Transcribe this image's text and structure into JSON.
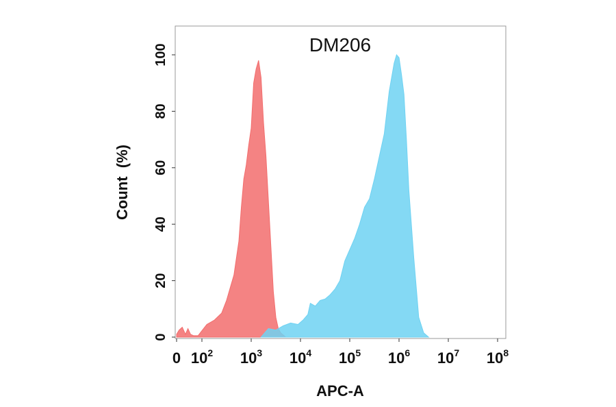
{
  "chart_data": {
    "type": "area",
    "title": "DM206",
    "xlabel": "APC-A",
    "ylabel": "Count  (%)",
    "x_scale": "biexponential (0, then log10)",
    "xlim": [
      0,
      100000000
    ],
    "ylim": [
      0,
      110
    ],
    "yticks": [
      0,
      20,
      40,
      60,
      80,
      100
    ],
    "ytick_labels": [
      "0",
      "20",
      "40",
      "60",
      "80",
      "100"
    ],
    "xticks": [
      {
        "label": "0",
        "base": "",
        "exp": "",
        "value": 0
      },
      {
        "label": "10",
        "base": "10",
        "exp": "2",
        "value": 100
      },
      {
        "label": "10",
        "base": "10",
        "exp": "3",
        "value": 1000
      },
      {
        "label": "10",
        "base": "10",
        "exp": "4",
        "value": 10000
      },
      {
        "label": "10",
        "base": "10",
        "exp": "5",
        "value": 100000
      },
      {
        "label": "10",
        "base": "10",
        "exp": "6",
        "value": 1000000
      },
      {
        "label": "10",
        "base": "10",
        "exp": "7",
        "value": 10000000
      },
      {
        "label": "10",
        "base": "10",
        "exp": "8",
        "value": 100000000
      }
    ],
    "grid": false,
    "legend": "none",
    "series": [
      {
        "color": "#f26d6d",
        "points": [
          [
            0,
            1
          ],
          [
            0.2,
            2.5
          ],
          [
            0.45,
            3.5
          ],
          [
            0.7,
            1
          ],
          [
            0.9,
            3
          ],
          [
            1.1,
            1
          ],
          [
            1.35,
            0.5
          ],
          [
            1.7,
            0.5
          ],
          [
            1.95,
            2
          ],
          [
            2.1,
            4.5
          ],
          [
            2.25,
            6
          ],
          [
            2.4,
            8.5
          ],
          [
            2.5,
            13
          ],
          [
            2.6,
            19
          ],
          [
            2.65,
            22
          ],
          [
            2.75,
            34
          ],
          [
            2.8,
            46
          ],
          [
            2.85,
            56
          ],
          [
            2.9,
            61
          ],
          [
            2.95,
            68
          ],
          [
            3.0,
            74
          ],
          [
            3.05,
            90
          ],
          [
            3.1,
            95
          ],
          [
            3.15,
            98
          ],
          [
            3.2,
            92
          ],
          [
            3.25,
            76
          ],
          [
            3.3,
            64
          ],
          [
            3.35,
            48
          ],
          [
            3.4,
            32
          ],
          [
            3.45,
            16
          ],
          [
            3.5,
            7
          ],
          [
            3.55,
            3
          ],
          [
            3.6,
            1.5
          ],
          [
            3.7,
            0
          ]
        ]
      },
      {
        "color": "#6fd2f2",
        "points": [
          [
            3.2,
            0
          ],
          [
            3.35,
            3
          ],
          [
            3.5,
            2.5
          ],
          [
            3.65,
            4
          ],
          [
            3.8,
            5
          ],
          [
            3.95,
            4.5
          ],
          [
            4.05,
            6
          ],
          [
            4.15,
            8
          ],
          [
            4.2,
            12
          ],
          [
            4.3,
            11
          ],
          [
            4.4,
            13
          ],
          [
            4.5,
            13.5
          ],
          [
            4.6,
            15
          ],
          [
            4.7,
            17
          ],
          [
            4.8,
            20
          ],
          [
            4.9,
            27
          ],
          [
            5.0,
            31
          ],
          [
            5.1,
            35
          ],
          [
            5.2,
            40
          ],
          [
            5.3,
            46
          ],
          [
            5.4,
            49
          ],
          [
            5.5,
            56
          ],
          [
            5.6,
            64
          ],
          [
            5.7,
            72
          ],
          [
            5.8,
            87
          ],
          [
            5.9,
            97
          ],
          [
            5.95,
            100
          ],
          [
            6.0,
            99
          ],
          [
            6.05,
            93
          ],
          [
            6.1,
            86
          ],
          [
            6.15,
            70
          ],
          [
            6.2,
            52
          ],
          [
            6.3,
            28
          ],
          [
            6.4,
            7
          ],
          [
            6.5,
            1.5
          ],
          [
            6.6,
            0
          ]
        ]
      }
    ]
  }
}
